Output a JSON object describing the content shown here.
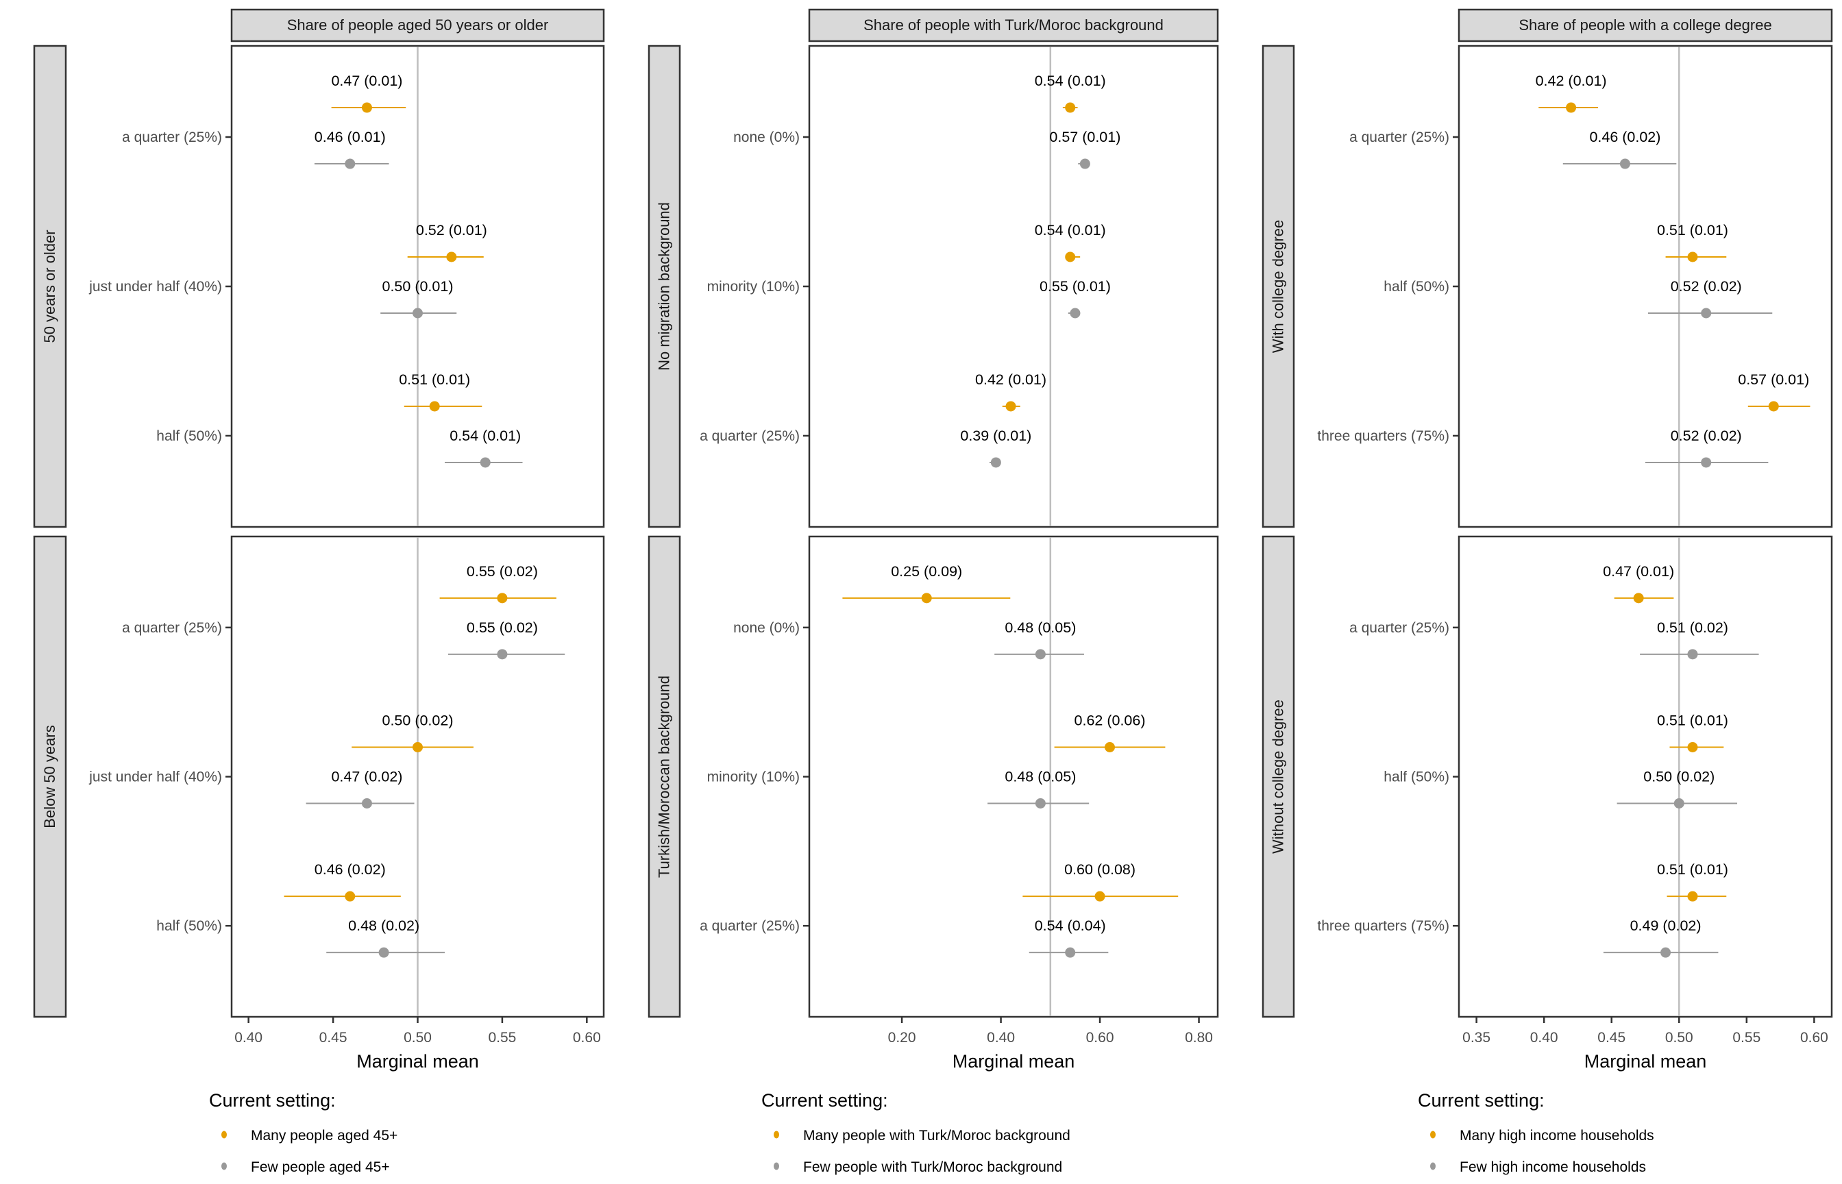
{
  "chart_data": {
    "type": "scatter",
    "subtype": "faceted dot-and-whisker (marginal means with 95% CI)",
    "reference_line": 0.5,
    "series_colors": {
      "many": "#E69F00",
      "few": "#999999"
    },
    "columns": [
      {
        "title": "Share of people aged 50 years or older",
        "xlabel": "Marginal mean",
        "xlim": [
          0.39,
          0.61
        ],
        "xticks": [
          0.4,
          0.45,
          0.5,
          0.55,
          0.6
        ],
        "xtick_labels": [
          "0.40",
          "0.45",
          "0.50",
          "0.55",
          "0.60"
        ],
        "categories": [
          "a quarter (25%)",
          "just under half (40%)",
          "half (50%)"
        ],
        "legend": {
          "title": "Current setting:",
          "many_label": "Many people aged 45+",
          "few_label": "Few people aged 45+"
        },
        "rows": [
          {
            "row_label": "50 years or older",
            "points": [
              {
                "category": "a quarter (25%)",
                "series": "many",
                "mean": 0.47,
                "se": 0.01,
                "ci": [
                  0.449,
                  0.493
                ],
                "label": "0.47 (0.01)"
              },
              {
                "category": "a quarter (25%)",
                "series": "few",
                "mean": 0.46,
                "se": 0.01,
                "ci": [
                  0.439,
                  0.483
                ],
                "label": "0.46 (0.01)"
              },
              {
                "category": "just under half (40%)",
                "series": "many",
                "mean": 0.52,
                "se": 0.01,
                "ci": [
                  0.494,
                  0.539
                ],
                "label": "0.52 (0.01)"
              },
              {
                "category": "just under half (40%)",
                "series": "few",
                "mean": 0.5,
                "se": 0.01,
                "ci": [
                  0.478,
                  0.523
                ],
                "label": "0.50 (0.01)"
              },
              {
                "category": "half (50%)",
                "series": "many",
                "mean": 0.51,
                "se": 0.01,
                "ci": [
                  0.492,
                  0.538
                ],
                "label": "0.51 (0.01)"
              },
              {
                "category": "half (50%)",
                "series": "few",
                "mean": 0.54,
                "se": 0.01,
                "ci": [
                  0.516,
                  0.562
                ],
                "label": "0.54 (0.01)"
              }
            ]
          },
          {
            "row_label": "Below 50 years",
            "points": [
              {
                "category": "a quarter (25%)",
                "series": "many",
                "mean": 0.55,
                "se": 0.02,
                "ci": [
                  0.513,
                  0.582
                ],
                "label": "0.55 (0.02)"
              },
              {
                "category": "a quarter (25%)",
                "series": "few",
                "mean": 0.55,
                "se": 0.02,
                "ci": [
                  0.518,
                  0.587
                ],
                "label": "0.55 (0.02)"
              },
              {
                "category": "just under half (40%)",
                "series": "many",
                "mean": 0.5,
                "se": 0.02,
                "ci": [
                  0.461,
                  0.533
                ],
                "label": "0.50 (0.02)"
              },
              {
                "category": "just under half (40%)",
                "series": "few",
                "mean": 0.47,
                "se": 0.02,
                "ci": [
                  0.434,
                  0.498
                ],
                "label": "0.47 (0.02)"
              },
              {
                "category": "half (50%)",
                "series": "many",
                "mean": 0.46,
                "se": 0.02,
                "ci": [
                  0.421,
                  0.49
                ],
                "label": "0.46 (0.02)"
              },
              {
                "category": "half (50%)",
                "series": "few",
                "mean": 0.48,
                "se": 0.02,
                "ci": [
                  0.446,
                  0.516
                ],
                "label": "0.48 (0.02)"
              }
            ]
          }
        ]
      },
      {
        "title": "Share of people with Turk/Moroc background",
        "xlabel": "Marginal mean",
        "xlim": [
          0.013,
          0.838
        ],
        "xticks": [
          0.2,
          0.4,
          0.6,
          0.8
        ],
        "xtick_labels": [
          "0.20",
          "0.40",
          "0.60",
          "0.80"
        ],
        "categories": [
          "none (0%)",
          "minority (10%)",
          "a quarter (25%)"
        ],
        "legend": {
          "title": "Current setting:",
          "many_label": "Many people with Turk/Moroc background",
          "few_label": "Few people with Turk/Moroc background"
        },
        "rows": [
          {
            "row_label": "No migration background",
            "points": [
              {
                "category": "none (0%)",
                "series": "many",
                "mean": 0.54,
                "se": 0.01,
                "ci": [
                  0.525,
                  0.555
                ],
                "label": "0.54 (0.01)"
              },
              {
                "category": "none (0%)",
                "series": "few",
                "mean": 0.57,
                "se": 0.01,
                "ci": [
                  0.556,
                  0.578
                ],
                "label": "0.57 (0.01)"
              },
              {
                "category": "minority (10%)",
                "series": "many",
                "mean": 0.54,
                "se": 0.01,
                "ci": [
                  0.53,
                  0.56
                ],
                "label": "0.54 (0.01)"
              },
              {
                "category": "minority (10%)",
                "series": "few",
                "mean": 0.55,
                "se": 0.01,
                "ci": [
                  0.536,
                  0.56
                ],
                "label": "0.55 (0.01)"
              },
              {
                "category": "a quarter (25%)",
                "series": "many",
                "mean": 0.42,
                "se": 0.01,
                "ci": [
                  0.403,
                  0.439
                ],
                "label": "0.42 (0.01)"
              },
              {
                "category": "a quarter (25%)",
                "series": "few",
                "mean": 0.39,
                "se": 0.01,
                "ci": [
                  0.377,
                  0.4
                ],
                "label": "0.39 (0.01)"
              }
            ]
          },
          {
            "row_label": "Turkish/Moroccan background",
            "points": [
              {
                "category": "none (0%)",
                "series": "many",
                "mean": 0.25,
                "se": 0.09,
                "ci": [
                  0.08,
                  0.419
                ],
                "label": "0.25 (0.09)"
              },
              {
                "category": "none (0%)",
                "series": "few",
                "mean": 0.48,
                "se": 0.05,
                "ci": [
                  0.387,
                  0.568
                ],
                "label": "0.48 (0.05)"
              },
              {
                "category": "minority (10%)",
                "series": "many",
                "mean": 0.62,
                "se": 0.06,
                "ci": [
                  0.508,
                  0.732
                ],
                "label": "0.62 (0.06)"
              },
              {
                "category": "minority (10%)",
                "series": "few",
                "mean": 0.48,
                "se": 0.05,
                "ci": [
                  0.373,
                  0.578
                ],
                "label": "0.48 (0.05)"
              },
              {
                "category": "a quarter (25%)",
                "series": "many",
                "mean": 0.6,
                "se": 0.08,
                "ci": [
                  0.444,
                  0.758
                ],
                "label": "0.60 (0.08)"
              },
              {
                "category": "a quarter (25%)",
                "series": "few",
                "mean": 0.54,
                "se": 0.04,
                "ci": [
                  0.457,
                  0.617
                ],
                "label": "0.54 (0.04)"
              }
            ]
          }
        ]
      },
      {
        "title": "Share of people with a college degree",
        "xlabel": "Marginal mean",
        "xlim": [
          0.337,
          0.613
        ],
        "xticks": [
          0.35,
          0.4,
          0.45,
          0.5,
          0.55,
          0.6
        ],
        "xtick_labels": [
          "0.35",
          "0.40",
          "0.45",
          "0.50",
          "0.55",
          "0.60"
        ],
        "categories": [
          "a quarter (25%)",
          "half (50%)",
          "three quarters (75%)"
        ],
        "legend": {
          "title": "Current setting:",
          "many_label": "Many high income households",
          "few_label": "Few high income households"
        },
        "rows": [
          {
            "row_label": "With college degree",
            "points": [
              {
                "category": "a quarter (25%)",
                "series": "many",
                "mean": 0.42,
                "se": 0.01,
                "ci": [
                  0.396,
                  0.44
                ],
                "label": "0.42 (0.01)"
              },
              {
                "category": "a quarter (25%)",
                "series": "few",
                "mean": 0.46,
                "se": 0.02,
                "ci": [
                  0.414,
                  0.498
                ],
                "label": "0.46 (0.02)"
              },
              {
                "category": "half (50%)",
                "series": "many",
                "mean": 0.51,
                "se": 0.01,
                "ci": [
                  0.49,
                  0.535
                ],
                "label": "0.51 (0.01)"
              },
              {
                "category": "half (50%)",
                "series": "few",
                "mean": 0.52,
                "se": 0.02,
                "ci": [
                  0.477,
                  0.569
                ],
                "label": "0.52 (0.02)"
              },
              {
                "category": "three quarters (75%)",
                "series": "many",
                "mean": 0.57,
                "se": 0.01,
                "ci": [
                  0.551,
                  0.597
                ],
                "label": "0.57 (0.01)"
              },
              {
                "category": "three quarters (75%)",
                "series": "few",
                "mean": 0.52,
                "se": 0.02,
                "ci": [
                  0.475,
                  0.566
                ],
                "label": "0.52 (0.02)"
              }
            ]
          },
          {
            "row_label": "Without college degree",
            "points": [
              {
                "category": "a quarter (25%)",
                "series": "many",
                "mean": 0.47,
                "se": 0.01,
                "ci": [
                  0.452,
                  0.496
                ],
                "label": "0.47 (0.01)"
              },
              {
                "category": "a quarter (25%)",
                "series": "few",
                "mean": 0.51,
                "se": 0.02,
                "ci": [
                  0.471,
                  0.559
                ],
                "label": "0.51 (0.02)"
              },
              {
                "category": "half (50%)",
                "series": "many",
                "mean": 0.51,
                "se": 0.01,
                "ci": [
                  0.493,
                  0.533
                ],
                "label": "0.51 (0.01)"
              },
              {
                "category": "half (50%)",
                "series": "few",
                "mean": 0.5,
                "se": 0.02,
                "ci": [
                  0.454,
                  0.543
                ],
                "label": "0.50 (0.02)"
              },
              {
                "category": "three quarters (75%)",
                "series": "many",
                "mean": 0.51,
                "se": 0.01,
                "ci": [
                  0.491,
                  0.535
                ],
                "label": "0.51 (0.01)"
              },
              {
                "category": "three quarters (75%)",
                "series": "few",
                "mean": 0.49,
                "se": 0.02,
                "ci": [
                  0.444,
                  0.529
                ],
                "label": "0.49 (0.02)"
              }
            ]
          }
        ]
      }
    ]
  }
}
